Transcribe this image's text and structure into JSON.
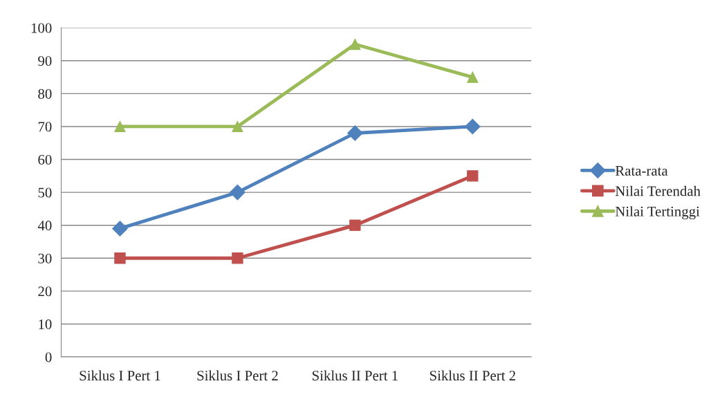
{
  "chart_data": {
    "type": "line",
    "categories": [
      "Siklus I Pert 1",
      "Siklus I Pert 2",
      "Siklus II Pert 1",
      "Siklus II Pert 2"
    ],
    "series": [
      {
        "name": "Rata-rata",
        "color": "#4f81bd",
        "marker": "diamond",
        "values": [
          39,
          50,
          68,
          70
        ]
      },
      {
        "name": "Nilai Terendah",
        "color": "#c0504d",
        "marker": "square",
        "values": [
          30,
          30,
          40,
          55
        ]
      },
      {
        "name": "Nilai Tertinggi",
        "color": "#9bbb59",
        "marker": "triangle",
        "values": [
          70,
          70,
          95,
          85
        ]
      }
    ],
    "ylim": [
      0,
      100
    ],
    "yticks": [
      0,
      10,
      20,
      30,
      40,
      50,
      60,
      70,
      80,
      90,
      100
    ],
    "grid": "y",
    "legend": "right",
    "line_style": "solid"
  }
}
